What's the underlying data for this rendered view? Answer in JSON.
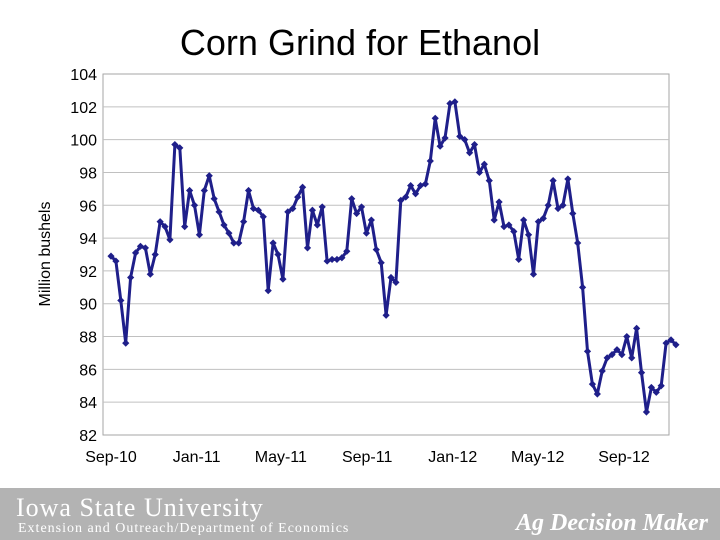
{
  "chart_data": {
    "type": "line",
    "title": "Corn Grind for Ethanol",
    "ylabel": "Million bushels",
    "xlabel": "",
    "ylim": [
      82,
      104
    ],
    "yticks": [
      82,
      84,
      86,
      88,
      90,
      92,
      94,
      96,
      98,
      100,
      102,
      104
    ],
    "x_start": "2010-09-01",
    "xticks": [
      {
        "label": "Sep-10",
        "date": "2010-09-01"
      },
      {
        "label": "Jan-11",
        "date": "2011-01-01"
      },
      {
        "label": "May-11",
        "date": "2011-05-01"
      },
      {
        "label": "Sep-11",
        "date": "2011-09-01"
      },
      {
        "label": "Jan-12",
        "date": "2012-01-01"
      },
      {
        "label": "May-12",
        "date": "2012-05-01"
      },
      {
        "label": "Sep-12",
        "date": "2012-09-01"
      }
    ],
    "grid": true,
    "color": "#1f1f8a",
    "series": [
      {
        "name": "",
        "values": [
          92.9,
          92.6,
          90.2,
          87.6,
          91.6,
          93.1,
          93.5,
          93.4,
          91.8,
          93.0,
          95.0,
          94.7,
          93.9,
          99.7,
          99.5,
          94.7,
          96.9,
          96.0,
          94.2,
          96.9,
          97.8,
          96.4,
          95.6,
          94.8,
          94.3,
          93.7,
          93.7,
          95.0,
          96.9,
          95.8,
          95.7,
          95.3,
          90.8,
          93.7,
          93.0,
          91.5,
          95.6,
          95.8,
          96.5,
          97.1,
          93.4,
          95.7,
          94.8,
          95.9,
          92.6,
          92.7,
          92.7,
          92.8,
          93.2,
          96.4,
          95.5,
          95.9,
          94.3,
          95.1,
          93.3,
          92.5,
          89.3,
          91.6,
          91.3,
          96.3,
          96.5,
          97.2,
          96.7,
          97.2,
          97.3,
          98.7,
          101.3,
          99.6,
          100.1,
          102.2,
          102.3,
          100.2,
          100.0,
          99.2,
          99.7,
          98.0,
          98.5,
          97.5,
          95.1,
          96.2,
          94.7,
          94.8,
          94.4,
          92.7,
          95.1,
          94.2,
          91.8,
          95.0,
          95.2,
          96.0,
          97.5,
          95.8,
          96.0,
          97.6,
          95.5,
          93.7,
          91.0,
          87.1,
          85.1,
          84.5,
          85.9,
          86.7,
          86.9,
          87.2,
          86.9,
          88.0,
          86.7,
          88.5,
          85.8,
          83.4,
          84.9,
          84.6,
          85.0,
          87.6,
          87.8,
          87.5
        ]
      }
    ]
  },
  "footer": {
    "university": "Iowa State University",
    "department": "Extension and Outreach/Department of Economics",
    "brand": "Ag Decision Maker"
  },
  "colors": {
    "line": "#1f1f8a",
    "grid": "#c0c0c0",
    "footer_bg": "#b3b3b3"
  }
}
